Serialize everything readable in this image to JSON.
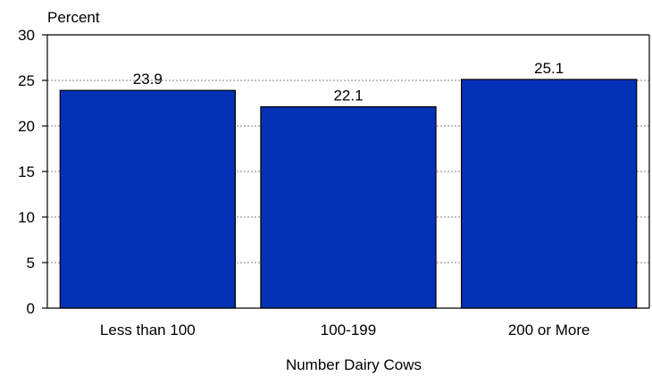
{
  "chart_data": {
    "type": "bar",
    "title": "",
    "ylabel": "Percent",
    "xlabel": "Number Dairy Cows",
    "categories": [
      "Less than 100",
      "100-199",
      "200 or More"
    ],
    "values": [
      23.9,
      22.1,
      25.1
    ],
    "value_labels": [
      "23.9",
      "22.1",
      "25.1"
    ],
    "ylim": [
      0,
      30
    ],
    "yticks": [
      0,
      5,
      10,
      15,
      20,
      25,
      30
    ],
    "grid": true,
    "bar_color": "#0432b6"
  }
}
